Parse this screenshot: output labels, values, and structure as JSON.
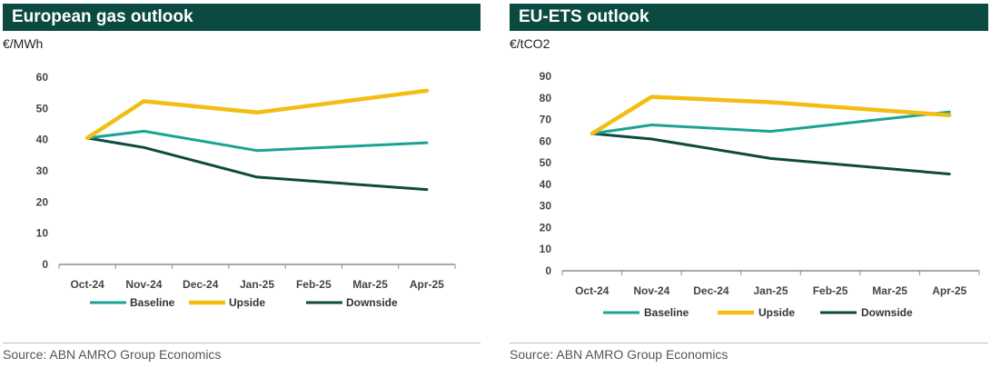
{
  "colors": {
    "title_bg": "#0b4a40",
    "baseline": "#1aa394",
    "upside": "#f2be14",
    "downside": "#0e4a3f",
    "axis": "#8c8c8c",
    "grid": "#e6e6e6"
  },
  "chart_data": [
    {
      "type": "line",
      "title": "European gas outlook",
      "ylabel": "€/MWh",
      "source": "Source: ABN AMRO Group Economics",
      "categories": [
        "Oct-24",
        "Nov-24",
        "Dec-24",
        "Jan-25",
        "Feb-25",
        "Mar-25",
        "Apr-25"
      ],
      "ylim": [
        0,
        60
      ],
      "yticks": [
        0,
        10,
        20,
        30,
        40,
        50,
        60
      ],
      "grid": false,
      "legend_position": "bottom",
      "series": [
        {
          "name": "Baseline",
          "color": "#1aa394",
          "x": [
            "Oct-24",
            "Nov-24",
            "Jan-25",
            "Apr-25"
          ],
          "values": [
            40.5,
            42.7,
            36.5,
            39.0
          ]
        },
        {
          "name": "Upside",
          "color": "#f2be14",
          "x": [
            "Oct-24",
            "Nov-24",
            "Jan-25",
            "Apr-25"
          ],
          "values": [
            40.5,
            52.3,
            48.7,
            55.7
          ]
        },
        {
          "name": "Downside",
          "color": "#0e4a3f",
          "x": [
            "Oct-24",
            "Nov-24",
            "Jan-25",
            "Apr-25"
          ],
          "values": [
            40.5,
            37.5,
            28.0,
            24.0
          ]
        }
      ]
    },
    {
      "type": "line",
      "title": "EU-ETS outlook",
      "ylabel": "€/tCO2",
      "source": "Source: ABN AMRO Group Economics",
      "categories": [
        "Oct-24",
        "Nov-24",
        "Dec-24",
        "Jan-25",
        "Feb-25",
        "Mar-25",
        "Apr-25"
      ],
      "ylim": [
        0,
        90
      ],
      "yticks": [
        0,
        10,
        20,
        30,
        40,
        50,
        60,
        70,
        80,
        90
      ],
      "grid": false,
      "legend_position": "bottom",
      "series": [
        {
          "name": "Baseline",
          "color": "#1aa394",
          "x": [
            "Oct-24",
            "Nov-24",
            "Jan-25",
            "Apr-25"
          ],
          "values": [
            63.5,
            67.5,
            64.5,
            73.5
          ]
        },
        {
          "name": "Upside",
          "color": "#f2be14",
          "x": [
            "Oct-24",
            "Nov-24",
            "Jan-25",
            "Apr-25"
          ],
          "values": [
            63.5,
            80.5,
            78.0,
            72.0
          ]
        },
        {
          "name": "Downside",
          "color": "#0e4a3f",
          "x": [
            "Oct-24",
            "Nov-24",
            "Jan-25",
            "Apr-25"
          ],
          "values": [
            63.5,
            61.0,
            52.0,
            44.8
          ]
        }
      ]
    }
  ]
}
